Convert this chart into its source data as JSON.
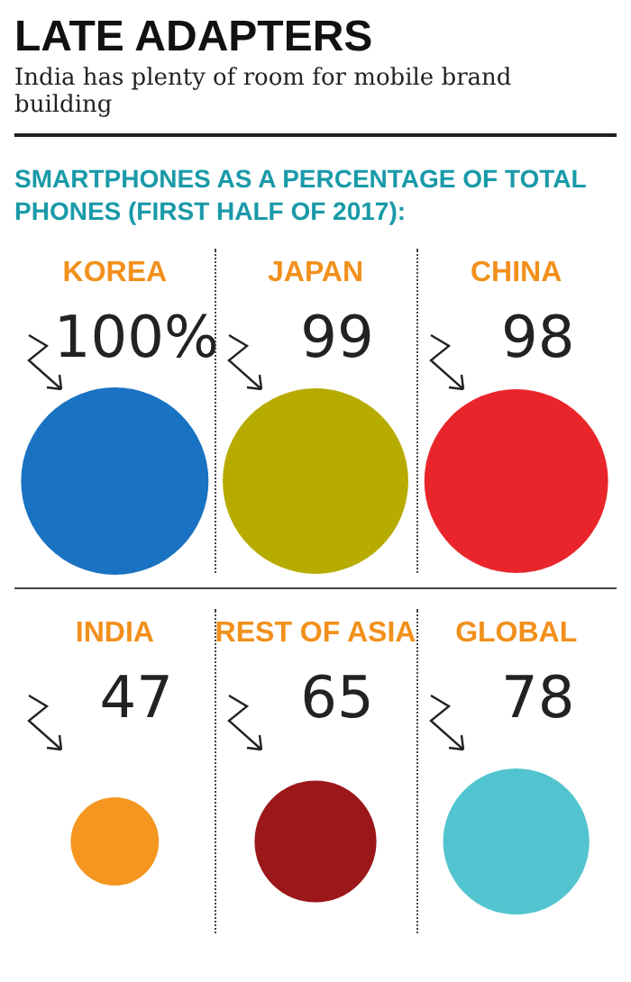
{
  "chart_data": {
    "type": "other",
    "title": "LATE ADAPTERS",
    "subtitle": "India has plenty of room for mobile brand building",
    "annotations": [
      "SMARTPHONES AS A PERCENTAGE OF TOTAL PHONES (FIRST HALF OF 2017):"
    ],
    "categories": [
      "KOREA",
      "JAPAN",
      "CHINA",
      "INDIA",
      "REST OF ASIA",
      "GLOBAL"
    ],
    "values": [
      100,
      99,
      98,
      47,
      65,
      78
    ],
    "value_labels": [
      "100%",
      "99",
      "98",
      "47",
      "65",
      "78"
    ],
    "colors": [
      "#1a72c2",
      "#b8ab00",
      "#e9252b",
      "#f4961f",
      "#9b1719",
      "#52c4cf"
    ]
  }
}
